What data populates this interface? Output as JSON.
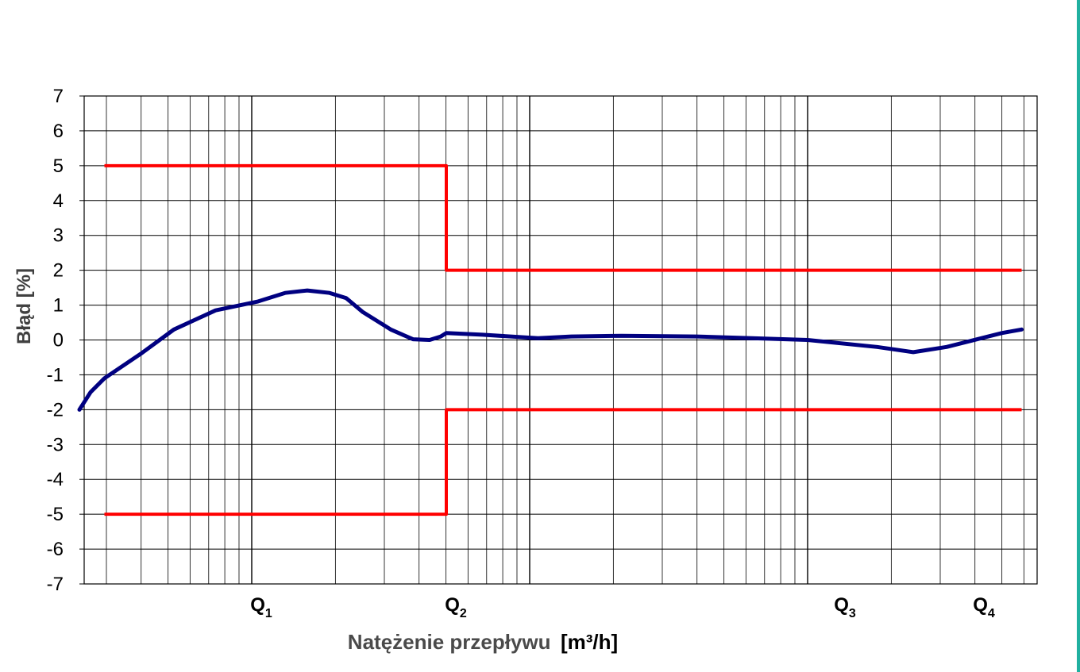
{
  "chart_data": {
    "type": "line",
    "title": "",
    "xlabel": "Natężenie przepływu",
    "xlabel_unit": "[m³/h]",
    "ylabel": "Błąd  [%]",
    "x_scale": "log",
    "x_axis_relative": "log10(Q / Q1)",
    "ylim": [
      -7,
      7
    ],
    "y_ticks": [
      "7",
      "6",
      "5",
      "4",
      "3",
      "2",
      "1",
      "0",
      "-1",
      "-2",
      "-3",
      "-4",
      "-5",
      "-6",
      "-7"
    ],
    "grid": true,
    "flow_markers": [
      {
        "name": "Q",
        "sub": "1",
        "logx": 0
      },
      {
        "name": "Q",
        "sub": "2",
        "logx": 0.7
      },
      {
        "name": "Q",
        "sub": "3",
        "logx": 2.1
      },
      {
        "name": "Q",
        "sub": "4",
        "logx": 2.6
      }
    ],
    "series": [
      {
        "name": "",
        "color": "#000080",
        "points": [
          [
            -0.62,
            -2.0
          ],
          [
            -0.58,
            -1.5
          ],
          [
            -0.53,
            -1.1
          ],
          [
            -0.4,
            -0.4
          ],
          [
            -0.28,
            0.3
          ],
          [
            -0.13,
            0.85
          ],
          [
            0.02,
            1.1
          ],
          [
            0.12,
            1.35
          ],
          [
            0.2,
            1.42
          ],
          [
            0.28,
            1.35
          ],
          [
            0.34,
            1.2
          ],
          [
            0.4,
            0.8
          ],
          [
            0.5,
            0.3
          ],
          [
            0.58,
            0.02
          ],
          [
            0.64,
            0.0
          ],
          [
            0.68,
            0.1
          ],
          [
            0.7,
            0.2
          ],
          [
            0.83,
            0.15
          ],
          [
            1.03,
            0.05
          ],
          [
            1.15,
            0.1
          ],
          [
            1.33,
            0.12
          ],
          [
            1.6,
            0.1
          ],
          [
            1.8,
            0.05
          ],
          [
            2.0,
            0.0
          ],
          [
            2.25,
            -0.2
          ],
          [
            2.38,
            -0.35
          ],
          [
            2.5,
            -0.2
          ],
          [
            2.65,
            0.1
          ],
          [
            2.7,
            0.2
          ],
          [
            2.77,
            0.3
          ]
        ]
      },
      {
        "name": "",
        "color": "#ff0000",
        "points": [
          [
            -0.53,
            5
          ],
          [
            0.7,
            5
          ],
          [
            0.7,
            2
          ],
          [
            2.77,
            2
          ]
        ]
      },
      {
        "name": "",
        "color": "#ff0000",
        "points": [
          [
            -0.53,
            -5
          ],
          [
            0.7,
            -5
          ],
          [
            0.7,
            -2
          ],
          [
            2.77,
            -2
          ]
        ]
      }
    ]
  },
  "theme": {
    "edge_color": "#20b0a0",
    "grid_color": "#000000"
  }
}
